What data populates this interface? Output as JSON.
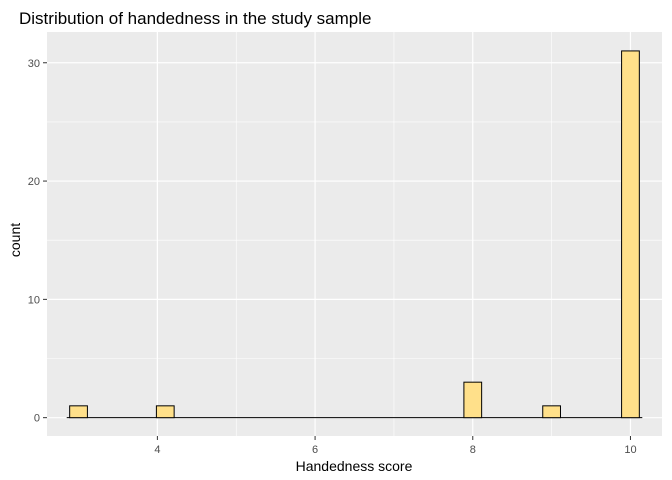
{
  "chart_data": {
    "type": "bar",
    "subtype": "histogram",
    "title": "Distribution of handedness in the study sample",
    "xlabel": "Handedness score",
    "ylabel": "count",
    "xlim": [
      2.6,
      10.4
    ],
    "ylim": [
      -1.55,
      32.6
    ],
    "x_ticks": [
      4,
      6,
      8,
      10
    ],
    "y_ticks": [
      0,
      10,
      20,
      30
    ],
    "bin_width": 0.225,
    "bins": [
      {
        "x": 3,
        "count": 1
      },
      {
        "x": 4.1,
        "count": 1
      },
      {
        "x": 8,
        "count": 3
      },
      {
        "x": 9,
        "count": 1
      },
      {
        "x": 10,
        "count": 31
      }
    ],
    "baseline": [
      2.85,
      10.15
    ],
    "bar_fill": "#FFE08A",
    "bar_outline": "#000000",
    "panel_background": "#EBEBEB",
    "grid_color": "#FFFFFF",
    "grid": true,
    "legend": "none"
  }
}
